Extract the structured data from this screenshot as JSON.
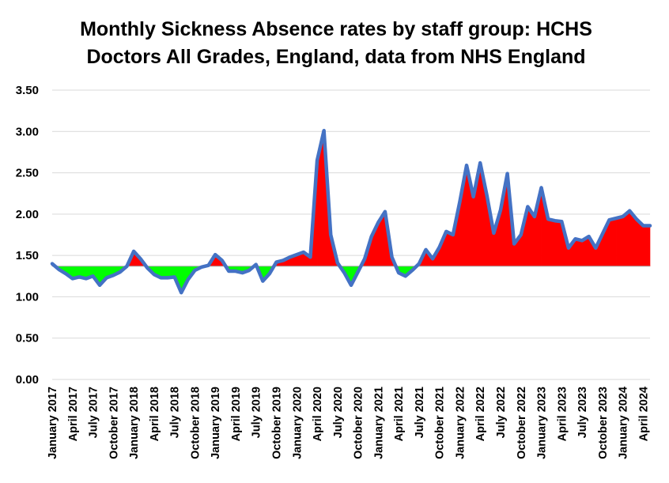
{
  "chart_data": {
    "type": "area",
    "title_lines": [
      "Monthly Sickness Absence rates by staff group: HCHS",
      "Doctors All Grades, England, data from NHS England"
    ],
    "xlabel": "",
    "ylabel": "",
    "ylim": [
      0,
      3.5
    ],
    "yticks": [
      "0.00",
      "0.50",
      "1.00",
      "1.50",
      "2.00",
      "2.50",
      "3.00",
      "3.50"
    ],
    "grid": true,
    "legend": "none",
    "baseline": 1.37,
    "colors": {
      "line": "#4472C4",
      "above_baseline": "#FF0000",
      "below_baseline": "#00FF00",
      "baseline_line": "#A6A6A6"
    },
    "x_tick_labels": [
      "January 2017",
      "April 2017",
      "July 2017",
      "October 2017",
      "January 2018",
      "April 2018",
      "July 2018",
      "October 2018",
      "January 2019",
      "April 2019",
      "July 2019",
      "October 2019",
      "January 2020",
      "April 2020",
      "July 2020",
      "October 2020",
      "January 2021",
      "April 2021",
      "July 2021",
      "October 2021",
      "January 2022",
      "April 2022",
      "July 2022",
      "October 2022",
      "January 2023",
      "April 2023",
      "July 2023",
      "October 2023",
      "January 2024",
      "April 2024"
    ],
    "series": [
      {
        "values": [
          1.4,
          1.33,
          1.28,
          1.22,
          1.24,
          1.22,
          1.25,
          1.14,
          1.23,
          1.26,
          1.3,
          1.37,
          1.55,
          1.46,
          1.35,
          1.27,
          1.23,
          1.23,
          1.24,
          1.05,
          1.21,
          1.32,
          1.36,
          1.38,
          1.51,
          1.44,
          1.31,
          1.31,
          1.29,
          1.32,
          1.39,
          1.19,
          1.28,
          1.42,
          1.44,
          1.48,
          1.51,
          1.54,
          1.48,
          2.65,
          3.01,
          1.75,
          1.41,
          1.29,
          1.14,
          1.3,
          1.46,
          1.73,
          1.9,
          2.03,
          1.48,
          1.29,
          1.25,
          1.32,
          1.4,
          1.57,
          1.46,
          1.6,
          1.79,
          1.75,
          2.15,
          2.59,
          2.21,
          2.62,
          2.22,
          1.77,
          2.05,
          2.49,
          1.64,
          1.75,
          2.09,
          1.97,
          2.32,
          1.94,
          1.92,
          1.91,
          1.59,
          1.7,
          1.68,
          1.73,
          1.59,
          1.76,
          1.93,
          1.95,
          1.97,
          2.04,
          1.94,
          1.86,
          1.86
        ]
      }
    ]
  }
}
